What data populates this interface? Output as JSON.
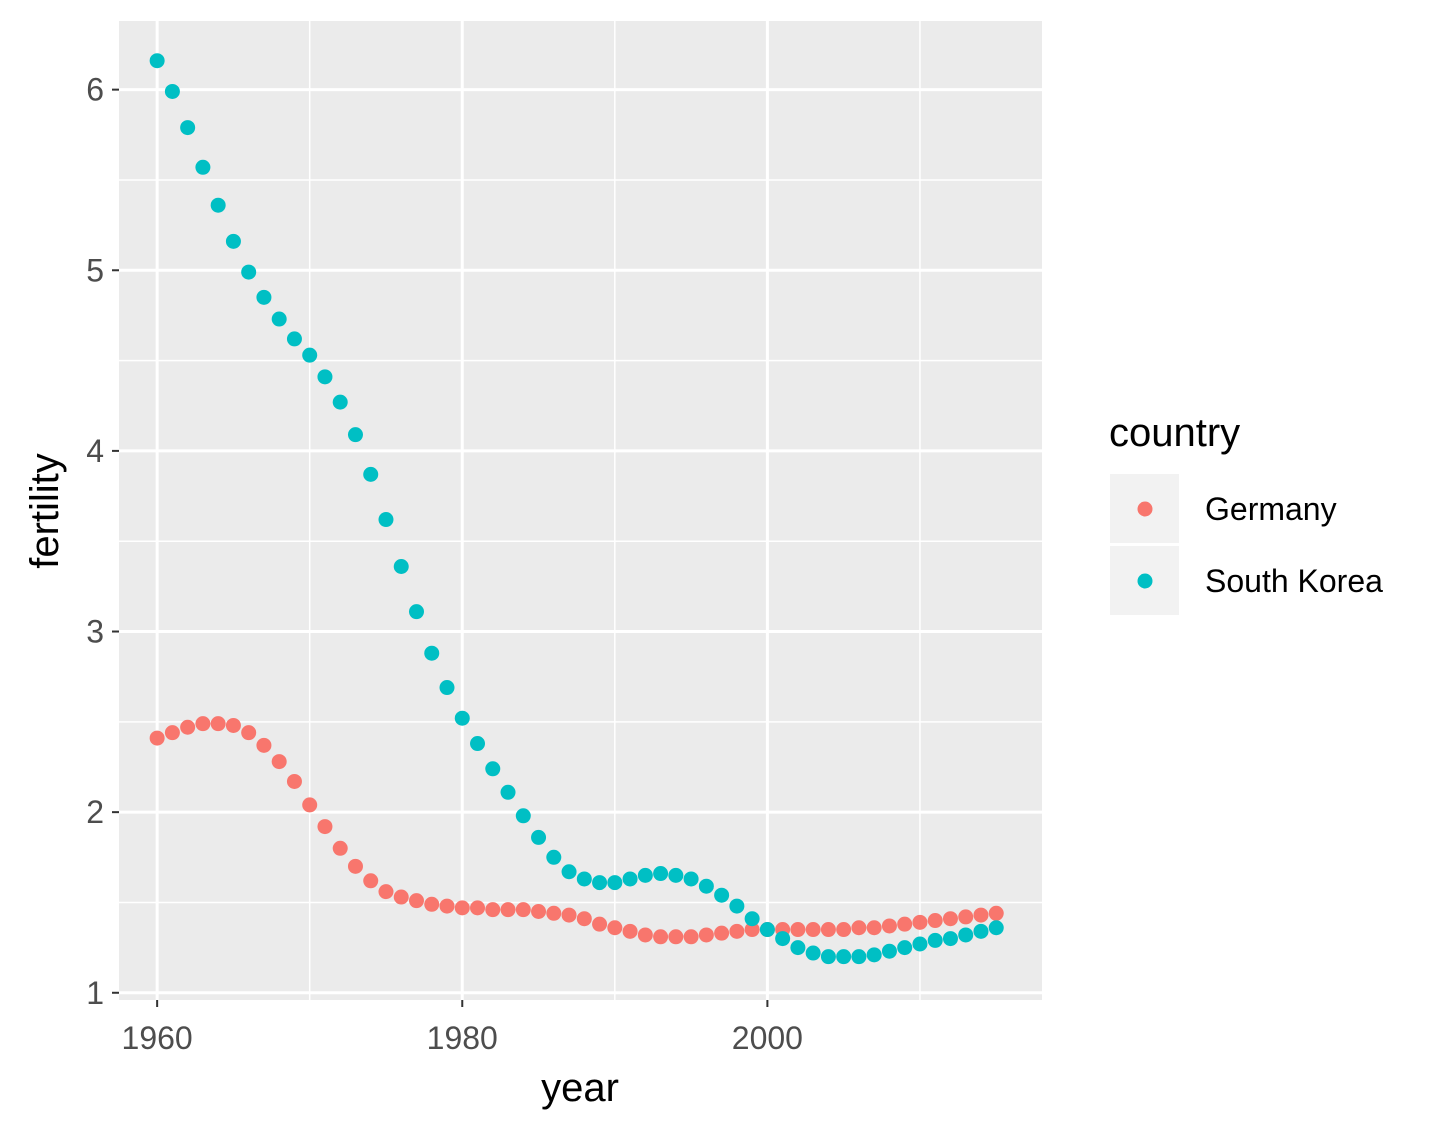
{
  "chart_data": {
    "type": "scatter",
    "xlabel": "year",
    "ylabel": "fertility",
    "xlim": [
      1957.5,
      2018.0
    ],
    "ylim": [
      0.96,
      6.38
    ],
    "x_ticks": [
      1960,
      1980,
      2000
    ],
    "y_ticks": [
      1,
      2,
      3,
      4,
      5,
      6
    ],
    "grid": true,
    "legend": {
      "title": "country",
      "placement": "right"
    },
    "x": [
      1960,
      1961,
      1962,
      1963,
      1964,
      1965,
      1966,
      1967,
      1968,
      1969,
      1970,
      1971,
      1972,
      1973,
      1974,
      1975,
      1976,
      1977,
      1978,
      1979,
      1980,
      1981,
      1982,
      1983,
      1984,
      1985,
      1986,
      1987,
      1988,
      1989,
      1990,
      1991,
      1992,
      1993,
      1994,
      1995,
      1996,
      1997,
      1998,
      1999,
      2000,
      2001,
      2002,
      2003,
      2004,
      2005,
      2006,
      2007,
      2008,
      2009,
      2010,
      2011,
      2012,
      2013,
      2014,
      2015
    ],
    "series": [
      {
        "name": "Germany",
        "color": "#F8766D",
        "values": [
          2.41,
          2.44,
          2.47,
          2.49,
          2.49,
          2.48,
          2.44,
          2.37,
          2.28,
          2.17,
          2.04,
          1.92,
          1.8,
          1.7,
          1.62,
          1.56,
          1.53,
          1.51,
          1.49,
          1.48,
          1.47,
          1.47,
          1.46,
          1.46,
          1.46,
          1.45,
          1.44,
          1.43,
          1.41,
          1.38,
          1.36,
          1.34,
          1.32,
          1.31,
          1.31,
          1.31,
          1.32,
          1.33,
          1.34,
          1.35,
          1.35,
          1.35,
          1.35,
          1.35,
          1.35,
          1.35,
          1.36,
          1.36,
          1.37,
          1.38,
          1.39,
          1.4,
          1.41,
          1.42,
          1.43,
          1.44
        ]
      },
      {
        "name": "South Korea",
        "color": "#00BFC4",
        "values": [
          6.16,
          5.99,
          5.79,
          5.57,
          5.36,
          5.16,
          4.99,
          4.85,
          4.73,
          4.62,
          4.53,
          4.41,
          4.27,
          4.09,
          3.87,
          3.62,
          3.36,
          3.11,
          2.88,
          2.69,
          2.52,
          2.38,
          2.24,
          2.11,
          1.98,
          1.86,
          1.75,
          1.67,
          1.63,
          1.61,
          1.61,
          1.63,
          1.65,
          1.66,
          1.65,
          1.63,
          1.59,
          1.54,
          1.48,
          1.41,
          1.35,
          1.3,
          1.25,
          1.22,
          1.2,
          1.2,
          1.2,
          1.21,
          1.23,
          1.25,
          1.27,
          1.29,
          1.3,
          1.32,
          1.34,
          1.36
        ]
      }
    ]
  }
}
